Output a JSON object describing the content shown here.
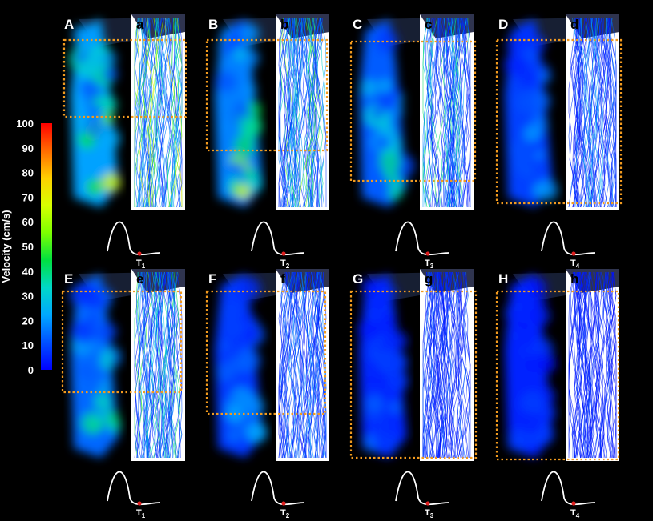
{
  "colorbar": {
    "title": "Velocity (cm/s)",
    "ticks": [
      "100",
      "90",
      "80",
      "70",
      "60",
      "50",
      "40",
      "30",
      "20",
      "10",
      "0"
    ],
    "colors": [
      "#ff0000",
      "#ff6a00",
      "#ffd000",
      "#d8ff00",
      "#7dff00",
      "#00e040",
      "#00d8c8",
      "#00a8ff",
      "#0050ff",
      "#0000ff"
    ]
  },
  "rows": [
    {
      "panels": [
        {
          "dark": "A",
          "light": "a",
          "t": "1",
          "intensity": 0.85
        },
        {
          "dark": "B",
          "light": "b",
          "t": "2",
          "intensity": 0.7
        },
        {
          "dark": "C",
          "light": "c",
          "t": "3",
          "intensity": 0.55
        },
        {
          "dark": "D",
          "light": "d",
          "t": "4",
          "intensity": 0.4
        }
      ]
    },
    {
      "panels": [
        {
          "dark": "E",
          "light": "e",
          "t": "1",
          "intensity": 0.6
        },
        {
          "dark": "F",
          "light": "f",
          "t": "2",
          "intensity": 0.35
        },
        {
          "dark": "G",
          "light": "g",
          "t": "3",
          "intensity": 0.25
        },
        {
          "dark": "H",
          "light": "h",
          "t": "4",
          "intensity": 0.2
        }
      ]
    }
  ],
  "time_prefix": "T"
}
